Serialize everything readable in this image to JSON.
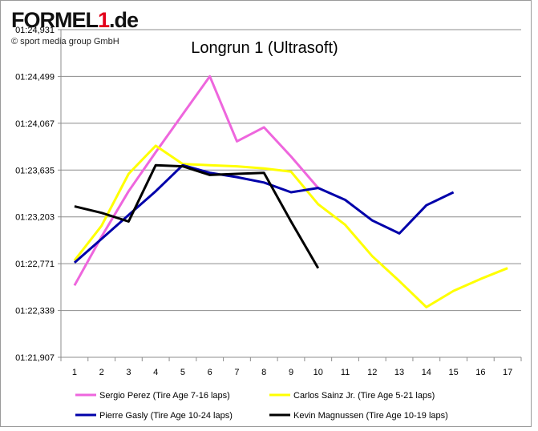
{
  "brand": {
    "logo_prefix": "FORMEL",
    "logo_number": "1",
    "logo_suffix": ".de",
    "copyright": "© sport media group GmbH"
  },
  "chart_data": {
    "type": "line",
    "title": "Longrun 1 (Ultrasoft)",
    "xlabel": "",
    "ylabel": "",
    "categories": [
      "1",
      "2",
      "3",
      "4",
      "5",
      "6",
      "7",
      "8",
      "9",
      "10",
      "11",
      "12",
      "13",
      "14",
      "15",
      "16",
      "17"
    ],
    "y_ticks": [
      "01:21,907",
      "01:22,339",
      "01:22,771",
      "01:23,203",
      "01:23,635",
      "01:24,067",
      "01:24,499",
      "01:24,931"
    ],
    "y_tick_values": [
      81.907,
      82.339,
      82.771,
      83.203,
      83.635,
      84.067,
      84.499,
      84.931
    ],
    "ylim": [
      81.907,
      84.931
    ],
    "grid": true,
    "legend_position": "bottom",
    "series": [
      {
        "name": "Sergio Perez (Tire Age 7-16 laps)",
        "color": "#ee66dd",
        "x": [
          1,
          2,
          3,
          4,
          5,
          6,
          7,
          8,
          9,
          10
        ],
        "values": [
          82.57,
          83.02,
          83.44,
          83.8,
          84.15,
          84.5,
          83.9,
          84.03,
          83.76,
          83.47
        ]
      },
      {
        "name": "Carlos Sainz Jr. (Tire Age 5-21 laps)",
        "color": "#ffff00",
        "x": [
          1,
          2,
          3,
          4,
          5,
          6,
          7,
          8,
          9,
          10,
          11,
          12,
          13,
          14,
          15,
          16,
          17
        ],
        "values": [
          82.8,
          83.12,
          83.6,
          83.86,
          83.69,
          83.68,
          83.67,
          83.65,
          83.62,
          83.32,
          83.13,
          82.84,
          82.61,
          82.37,
          82.52,
          82.63,
          82.73
        ]
      },
      {
        "name": "Pierre Gasly (Tire Age 10-24 laps)",
        "color": "#0000aa",
        "x": [
          1,
          2,
          3,
          4,
          5,
          6,
          7,
          8,
          9,
          10,
          11,
          12,
          13,
          14,
          15
        ],
        "values": [
          82.78,
          83.0,
          83.22,
          83.44,
          83.68,
          83.61,
          83.57,
          83.52,
          83.43,
          83.47,
          83.36,
          83.17,
          83.05,
          83.31,
          83.43
        ]
      },
      {
        "name": "Kevin Magnussen (Tire Age 10-19 laps)",
        "color": "#000000",
        "x": [
          1,
          2,
          3,
          4,
          5,
          6,
          7,
          8,
          9,
          10
        ],
        "values": [
          83.3,
          83.24,
          83.16,
          83.68,
          83.67,
          83.59,
          83.6,
          83.61,
          83.16,
          82.73
        ]
      }
    ]
  }
}
